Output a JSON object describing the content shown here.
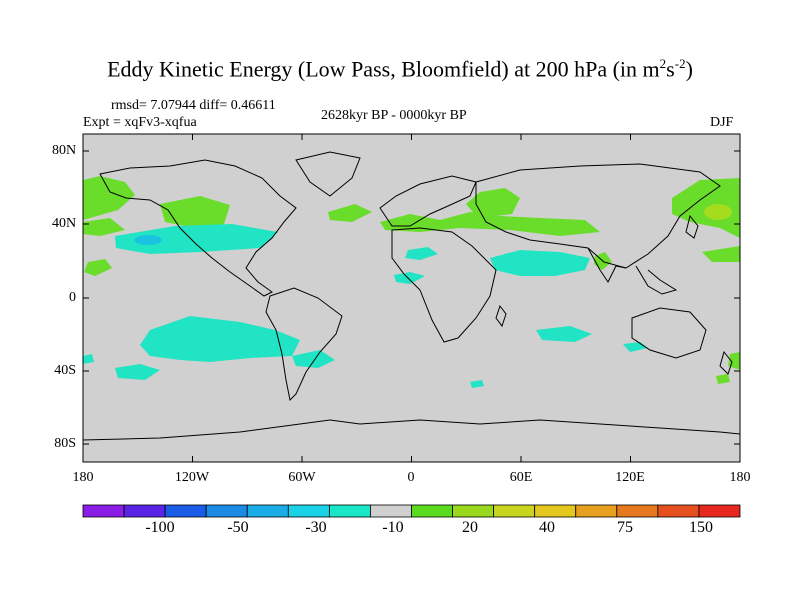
{
  "title": {
    "text": "Eddy Kinetic Energy (Low Pass, Bloomfield) at 200 hPa (in m",
    "sup1": "2",
    "mid": "s",
    "sup2": "-2",
    "close": ")"
  },
  "rmsd_line": "rmsd= 7.07944 diff= 0.46611",
  "expt_line": "Expt = xqFv3-xqfua",
  "period": "2628kyr BP - 0000kyr BP",
  "season": "DJF",
  "lon_ticks": [
    "180",
    "120W",
    "60W",
    "0",
    "60E",
    "120E",
    "180"
  ],
  "lat_ticks": [
    "80N",
    "40N",
    "0",
    "40S",
    "80S"
  ],
  "colorbar": {
    "colors": [
      "#8a1ce6",
      "#5a24e6",
      "#1a5ce6",
      "#1a8ce6",
      "#1aace6",
      "#1ad2e6",
      "#1ae6c8",
      "#d0d0d0",
      "#5adc1e",
      "#9ad81e",
      "#c8d41e",
      "#e4c81e",
      "#e6a01e",
      "#e6781e",
      "#e6501e",
      "#e6281e"
    ],
    "labels": [
      "-100",
      "-50",
      "-30",
      "-10",
      "20",
      "40",
      "75",
      "150"
    ]
  },
  "colors": {
    "ocean_land": "#d0d0d0",
    "positive_anom": "#6adc2a",
    "negative_anom": "#20e4c4",
    "strong_negative": "#1ac4de",
    "strong_positive": "#a6dc1e",
    "coastline": "#000000"
  }
}
